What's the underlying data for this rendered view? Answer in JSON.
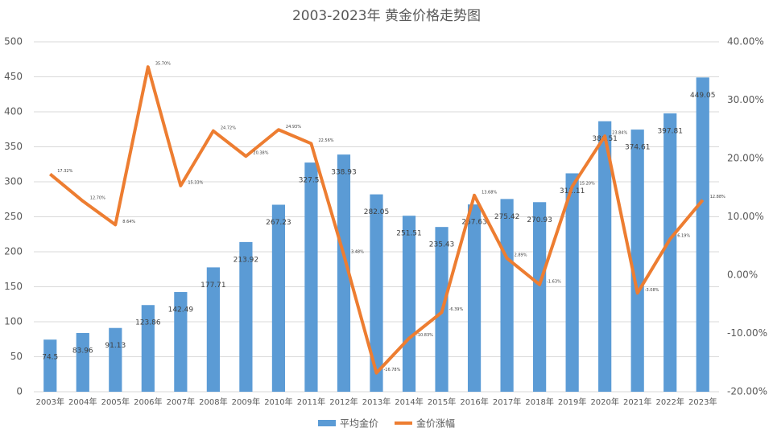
{
  "chart_data": {
    "type": "bar",
    "title": "2003-2023年 黄金价格走势图",
    "categories": [
      "2003年",
      "2004年",
      "2005年",
      "2006年",
      "2007年",
      "2008年",
      "2009年",
      "2010年",
      "2011年",
      "2012年",
      "2013年",
      "2014年",
      "2015年",
      "2016年",
      "2017年",
      "2018年",
      "2019年",
      "2020年",
      "2021年",
      "2022年",
      "2023年"
    ],
    "series": [
      {
        "name": "平均金价",
        "type": "bar",
        "color": "#5b9bd5",
        "values": [
          74.5,
          83.96,
          91.13,
          123.86,
          142.49,
          177.71,
          213.92,
          267.23,
          327.51,
          338.93,
          282.05,
          251.51,
          235.43,
          267.63,
          275.42,
          270.93,
          312.11,
          386.51,
          374.61,
          397.81,
          449.05
        ]
      },
      {
        "name": "金价涨幅",
        "type": "line",
        "axis": "y2",
        "color": "#ed7d31",
        "values": [
          17.32,
          12.7,
          8.64,
          35.7,
          15.33,
          24.72,
          20.38,
          24.93,
          22.56,
          3.48,
          -16.78,
          -10.83,
          -6.39,
          13.68,
          2.89,
          -1.63,
          15.2,
          23.84,
          -3.08,
          6.19,
          12.88
        ],
        "value_labels": [
          "17.32%",
          "12.70%",
          "8.64%",
          "35.70%",
          "15.33%",
          "24.72%",
          "20.38%",
          "24.93%",
          "22.56%",
          "3.48%",
          "-16.78%",
          "-10.83%",
          "-6.39%",
          "13.68%",
          "2.89%",
          "-1.63%",
          "15.20%",
          "23.84%",
          "-3.08%",
          "6.19%",
          "12.88%"
        ]
      }
    ],
    "ylim": [
      0,
      500
    ],
    "yticks": [
      0,
      50,
      100,
      150,
      200,
      250,
      300,
      350,
      400,
      450,
      500
    ],
    "y2lim": [
      -20,
      40
    ],
    "y2ticks": [
      {
        "value": -20,
        "label": "-20.00%"
      },
      {
        "value": -10,
        "label": "-10.00%"
      },
      {
        "value": 0,
        "label": "0.00%"
      },
      {
        "value": 10,
        "label": "10.00%"
      },
      {
        "value": 20,
        "label": "20.00%"
      },
      {
        "value": 30,
        "label": "30.00%"
      },
      {
        "value": 40,
        "label": "40.00%"
      }
    ],
    "grid": true,
    "legend": "bottom"
  }
}
